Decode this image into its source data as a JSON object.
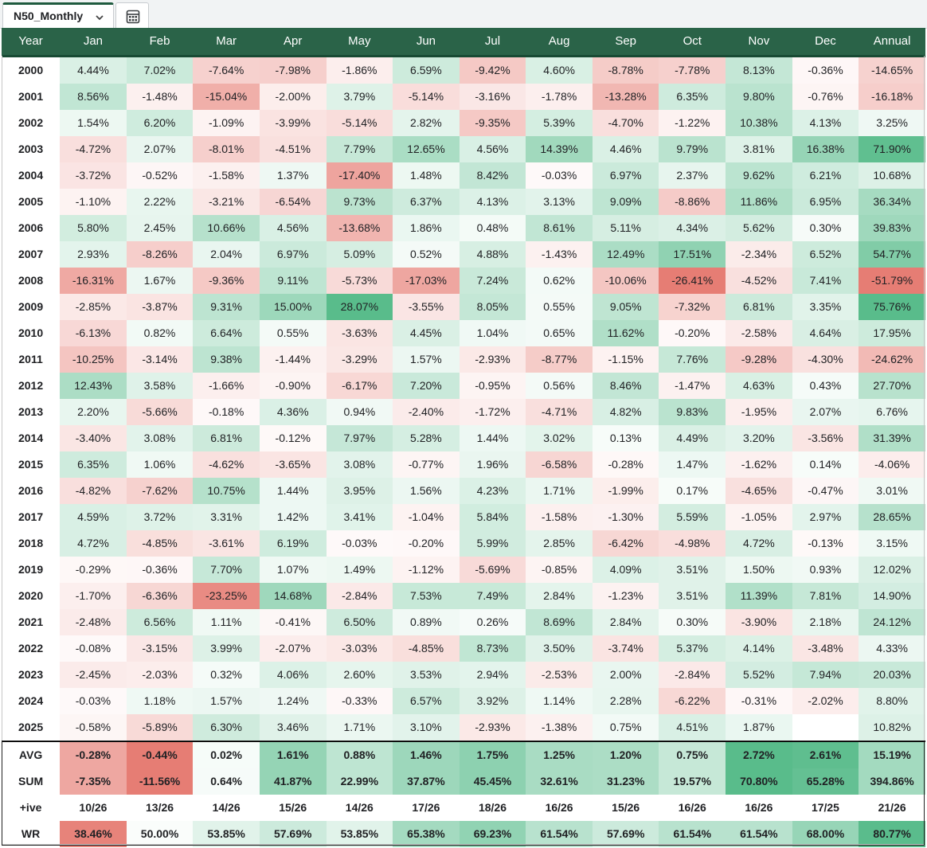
{
  "sheet_tab": {
    "name": "N50_Monthly",
    "menu_icon": "chevron-down-icon",
    "sheet_icon": "calculator-grid-icon"
  },
  "colors": {
    "header_bg": "#2a6348",
    "header_text": "#ffffff",
    "pos_max": "#57bb8a",
    "neg_max": "#e67c73",
    "neutral": "#ffffff"
  },
  "table": {
    "headers": [
      "Year",
      "Jan",
      "Feb",
      "Mar",
      "Apr",
      "May",
      "Jun",
      "Jul",
      "Aug",
      "Sep",
      "Oct",
      "Nov",
      "Dec",
      "Annual"
    ],
    "rows": [
      {
        "year": "2000",
        "values": [
          "4.44%",
          "7.02%",
          "-7.64%",
          "-7.98%",
          "-1.86%",
          "6.59%",
          "-9.42%",
          "4.60%",
          "-8.78%",
          "-7.78%",
          "8.13%",
          "-0.36%",
          "-14.65%"
        ]
      },
      {
        "year": "2001",
        "values": [
          "8.56%",
          "-1.48%",
          "-15.04%",
          "-2.00%",
          "3.79%",
          "-5.14%",
          "-3.16%",
          "-1.78%",
          "-13.28%",
          "6.35%",
          "9.80%",
          "-0.76%",
          "-16.18%"
        ]
      },
      {
        "year": "2002",
        "values": [
          "1.54%",
          "6.20%",
          "-1.09%",
          "-3.99%",
          "-5.14%",
          "2.82%",
          "-9.35%",
          "5.39%",
          "-4.70%",
          "-1.22%",
          "10.38%",
          "4.13%",
          "3.25%"
        ]
      },
      {
        "year": "2003",
        "values": [
          "-4.72%",
          "2.07%",
          "-8.01%",
          "-4.51%",
          "7.79%",
          "12.65%",
          "4.56%",
          "14.39%",
          "4.46%",
          "9.79%",
          "3.81%",
          "16.38%",
          "71.90%"
        ]
      },
      {
        "year": "2004",
        "values": [
          "-3.72%",
          "-0.52%",
          "-1.58%",
          "1.37%",
          "-17.40%",
          "1.48%",
          "8.42%",
          "-0.03%",
          "6.97%",
          "2.37%",
          "9.62%",
          "6.21%",
          "10.68%"
        ]
      },
      {
        "year": "2005",
        "values": [
          "-1.10%",
          "2.22%",
          "-3.21%",
          "-6.54%",
          "9.73%",
          "6.37%",
          "4.13%",
          "3.13%",
          "9.09%",
          "-8.86%",
          "11.86%",
          "6.95%",
          "36.34%"
        ]
      },
      {
        "year": "2006",
        "values": [
          "5.80%",
          "2.45%",
          "10.66%",
          "4.56%",
          "-13.68%",
          "1.86%",
          "0.48%",
          "8.61%",
          "5.11%",
          "4.34%",
          "5.62%",
          "0.30%",
          "39.83%"
        ]
      },
      {
        "year": "2007",
        "values": [
          "2.93%",
          "-8.26%",
          "2.04%",
          "6.97%",
          "5.09%",
          "0.52%",
          "4.88%",
          "-1.43%",
          "12.49%",
          "17.51%",
          "-2.34%",
          "6.52%",
          "54.77%"
        ]
      },
      {
        "year": "2008",
        "values": [
          "-16.31%",
          "1.67%",
          "-9.36%",
          "9.11%",
          "-5.73%",
          "-17.03%",
          "7.24%",
          "0.62%",
          "-10.06%",
          "-26.41%",
          "-4.52%",
          "7.41%",
          "-51.79%"
        ]
      },
      {
        "year": "2009",
        "values": [
          "-2.85%",
          "-3.87%",
          "9.31%",
          "15.00%",
          "28.07%",
          "-3.55%",
          "8.05%",
          "0.55%",
          "9.05%",
          "-7.32%",
          "6.81%",
          "3.35%",
          "75.76%"
        ]
      },
      {
        "year": "2010",
        "values": [
          "-6.13%",
          "0.82%",
          "6.64%",
          "0.55%",
          "-3.63%",
          "4.45%",
          "1.04%",
          "0.65%",
          "11.62%",
          "-0.20%",
          "-2.58%",
          "4.64%",
          "17.95%"
        ]
      },
      {
        "year": "2011",
        "values": [
          "-10.25%",
          "-3.14%",
          "9.38%",
          "-1.44%",
          "-3.29%",
          "1.57%",
          "-2.93%",
          "-8.77%",
          "-1.15%",
          "7.76%",
          "-9.28%",
          "-4.30%",
          "-24.62%"
        ]
      },
      {
        "year": "2012",
        "values": [
          "12.43%",
          "3.58%",
          "-1.66%",
          "-0.90%",
          "-6.17%",
          "7.20%",
          "-0.95%",
          "0.56%",
          "8.46%",
          "-1.47%",
          "4.63%",
          "0.43%",
          "27.70%"
        ]
      },
      {
        "year": "2013",
        "values": [
          "2.20%",
          "-5.66%",
          "-0.18%",
          "4.36%",
          "0.94%",
          "-2.40%",
          "-1.72%",
          "-4.71%",
          "4.82%",
          "9.83%",
          "-1.95%",
          "2.07%",
          "6.76%"
        ]
      },
      {
        "year": "2014",
        "values": [
          "-3.40%",
          "3.08%",
          "6.81%",
          "-0.12%",
          "7.97%",
          "5.28%",
          "1.44%",
          "3.02%",
          "0.13%",
          "4.49%",
          "3.20%",
          "-3.56%",
          "31.39%"
        ]
      },
      {
        "year": "2015",
        "values": [
          "6.35%",
          "1.06%",
          "-4.62%",
          "-3.65%",
          "3.08%",
          "-0.77%",
          "1.96%",
          "-6.58%",
          "-0.28%",
          "1.47%",
          "-1.62%",
          "0.14%",
          "-4.06%"
        ]
      },
      {
        "year": "2016",
        "values": [
          "-4.82%",
          "-7.62%",
          "10.75%",
          "1.44%",
          "3.95%",
          "1.56%",
          "4.23%",
          "1.71%",
          "-1.99%",
          "0.17%",
          "-4.65%",
          "-0.47%",
          "3.01%"
        ]
      },
      {
        "year": "2017",
        "values": [
          "4.59%",
          "3.72%",
          "3.31%",
          "1.42%",
          "3.41%",
          "-1.04%",
          "5.84%",
          "-1.58%",
          "-1.30%",
          "5.59%",
          "-1.05%",
          "2.97%",
          "28.65%"
        ]
      },
      {
        "year": "2018",
        "values": [
          "4.72%",
          "-4.85%",
          "-3.61%",
          "6.19%",
          "-0.03%",
          "-0.20%",
          "5.99%",
          "2.85%",
          "-6.42%",
          "-4.98%",
          "4.72%",
          "-0.13%",
          "3.15%"
        ]
      },
      {
        "year": "2019",
        "values": [
          "-0.29%",
          "-0.36%",
          "7.70%",
          "1.07%",
          "1.49%",
          "-1.12%",
          "-5.69%",
          "-0.85%",
          "4.09%",
          "3.51%",
          "1.50%",
          "0.93%",
          "12.02%"
        ]
      },
      {
        "year": "2020",
        "values": [
          "-1.70%",
          "-6.36%",
          "-23.25%",
          "14.68%",
          "-2.84%",
          "7.53%",
          "7.49%",
          "2.84%",
          "-1.23%",
          "3.51%",
          "11.39%",
          "7.81%",
          "14.90%"
        ]
      },
      {
        "year": "2021",
        "values": [
          "-2.48%",
          "6.56%",
          "1.11%",
          "-0.41%",
          "6.50%",
          "0.89%",
          "0.26%",
          "8.69%",
          "2.84%",
          "0.30%",
          "-3.90%",
          "2.18%",
          "24.12%"
        ]
      },
      {
        "year": "2022",
        "values": [
          "-0.08%",
          "-3.15%",
          "3.99%",
          "-2.07%",
          "-3.03%",
          "-4.85%",
          "8.73%",
          "3.50%",
          "-3.74%",
          "5.37%",
          "4.14%",
          "-3.48%",
          "4.33%"
        ]
      },
      {
        "year": "2023",
        "values": [
          "-2.45%",
          "-2.03%",
          "0.32%",
          "4.06%",
          "2.60%",
          "3.53%",
          "2.94%",
          "-2.53%",
          "2.00%",
          "-2.84%",
          "5.52%",
          "7.94%",
          "20.03%"
        ]
      },
      {
        "year": "2024",
        "values": [
          "-0.03%",
          "1.18%",
          "1.57%",
          "1.24%",
          "-0.33%",
          "6.57%",
          "3.92%",
          "1.14%",
          "2.28%",
          "-6.22%",
          "-0.31%",
          "-2.02%",
          "8.80%"
        ]
      },
      {
        "year": "2025",
        "values": [
          "-0.58%",
          "-5.89%",
          "6.30%",
          "3.46%",
          "1.71%",
          "3.10%",
          "-2.93%",
          "-1.38%",
          "0.75%",
          "4.51%",
          "1.87%",
          "",
          "10.82%"
        ]
      }
    ],
    "stats": [
      {
        "label": "AVG",
        "values": [
          "-0.28%",
          "-0.44%",
          "0.02%",
          "1.61%",
          "0.88%",
          "1.46%",
          "1.75%",
          "1.25%",
          "1.20%",
          "0.75%",
          "2.72%",
          "2.61%",
          "15.19%"
        ]
      },
      {
        "label": "SUM",
        "values": [
          "-7.35%",
          "-11.56%",
          "0.64%",
          "41.87%",
          "22.99%",
          "37.87%",
          "45.45%",
          "32.61%",
          "31.23%",
          "19.57%",
          "70.80%",
          "65.28%",
          "394.86%"
        ]
      },
      {
        "label": "+ive",
        "values": [
          "10/26",
          "13/26",
          "14/26",
          "15/26",
          "14/26",
          "17/26",
          "18/26",
          "16/26",
          "15/26",
          "16/26",
          "16/26",
          "17/25",
          "21/26"
        ]
      },
      {
        "label": "WR",
        "values": [
          "38.46%",
          "50.00%",
          "53.85%",
          "57.69%",
          "53.85%",
          "65.38%",
          "69.23%",
          "61.54%",
          "57.69%",
          "61.54%",
          "61.54%",
          "68.00%",
          "80.77%"
        ]
      }
    ]
  }
}
